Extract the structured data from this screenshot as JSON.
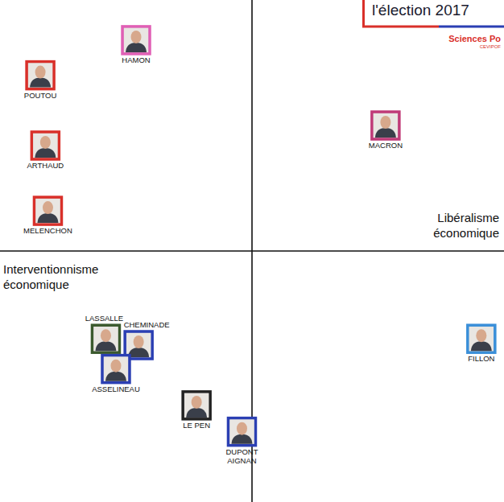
{
  "chart_data": {
    "type": "scatter",
    "title": "l'élection 2017",
    "logo": "Sciences Po",
    "logo_subtitle": "CEVIPOF",
    "annotations": [
      "Interventionnisme économique",
      "Libéralisme économique"
    ],
    "labels": [
      "HAMON",
      "POUTOU",
      "ARTHAUD",
      "MELENCHON",
      "MACRON",
      "FILLON",
      "LASSALLE",
      "CHEMINADE",
      "ASSELINEAU",
      "LE PEN",
      "DUPONT AIGNAN"
    ],
    "x": [
      -4.6,
      -8.4,
      -8.2,
      -8.1,
      5.3,
      9.1,
      -5.8,
      -4.5,
      -5.4,
      -2.2,
      -0.4
    ],
    "values": [
      8.4,
      7.0,
      4.2,
      1.6,
      5.0,
      -3.5,
      -3.5,
      -3.75,
      -4.7,
      -6.15,
      -7.2
    ],
    "colors": [
      "#e05fb5",
      "#d9302a",
      "#d9302a",
      "#d9302a",
      "#c03a78",
      "#3a8fd9",
      "#3b5a2e",
      "#2b3fb3",
      "#2b3fb3",
      "#222222",
      "#2b3fb3"
    ],
    "xlim": [
      -10,
      10
    ],
    "ylim": [
      -10,
      10
    ],
    "xticks": [
      0
    ],
    "yticks": [
      0
    ],
    "tick_labels": false,
    "grid": false,
    "marker": "square"
  }
}
